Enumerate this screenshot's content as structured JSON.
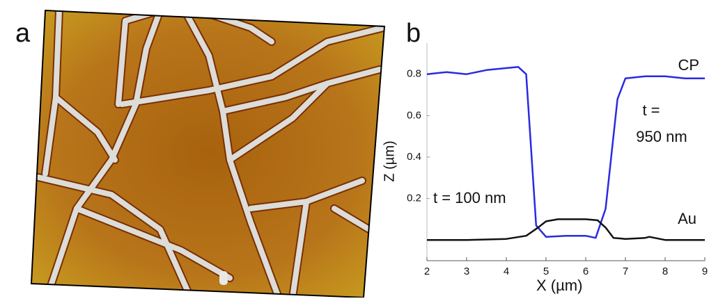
{
  "panel_labels": [
    "a",
    "b"
  ],
  "chart_data": {
    "type": "line",
    "xlabel": "X (µm)",
    "ylabel": "Z (µm)",
    "xlim": [
      2,
      9
    ],
    "ylim": [
      -0.1,
      0.95
    ],
    "xticks": [
      2,
      3,
      4,
      5,
      6,
      7,
      8,
      9
    ],
    "yticks": [
      0.2,
      0.4,
      0.6,
      0.8
    ],
    "annotations": [
      "CP",
      "t =",
      "950 nm",
      "t = 100 nm",
      "Au"
    ],
    "series": [
      {
        "name": "CP",
        "color": "#2a2ae0",
        "x": [
          2,
          2.5,
          3,
          3.5,
          4.3,
          4.5,
          4.75,
          5,
          5.5,
          6,
          6.25,
          6.5,
          6.8,
          7,
          7.5,
          8,
          8.5,
          9
        ],
        "values": [
          0.8,
          0.81,
          0.8,
          0.82,
          0.835,
          0.8,
          0.07,
          0.015,
          0.02,
          0.02,
          0.01,
          0.15,
          0.68,
          0.78,
          0.79,
          0.79,
          0.78,
          0.78
        ]
      },
      {
        "name": "Au",
        "color": "#111111",
        "x": [
          2,
          3,
          4,
          4.5,
          4.8,
          5,
          5.3,
          6,
          6.3,
          6.5,
          6.7,
          7,
          7.5,
          7.6,
          8,
          9
        ],
        "values": [
          0,
          0,
          0.005,
          0.02,
          0.06,
          0.09,
          0.1,
          0.1,
          0.095,
          0.06,
          0.01,
          0.005,
          0.01,
          0.015,
          0,
          0
        ]
      }
    ]
  }
}
